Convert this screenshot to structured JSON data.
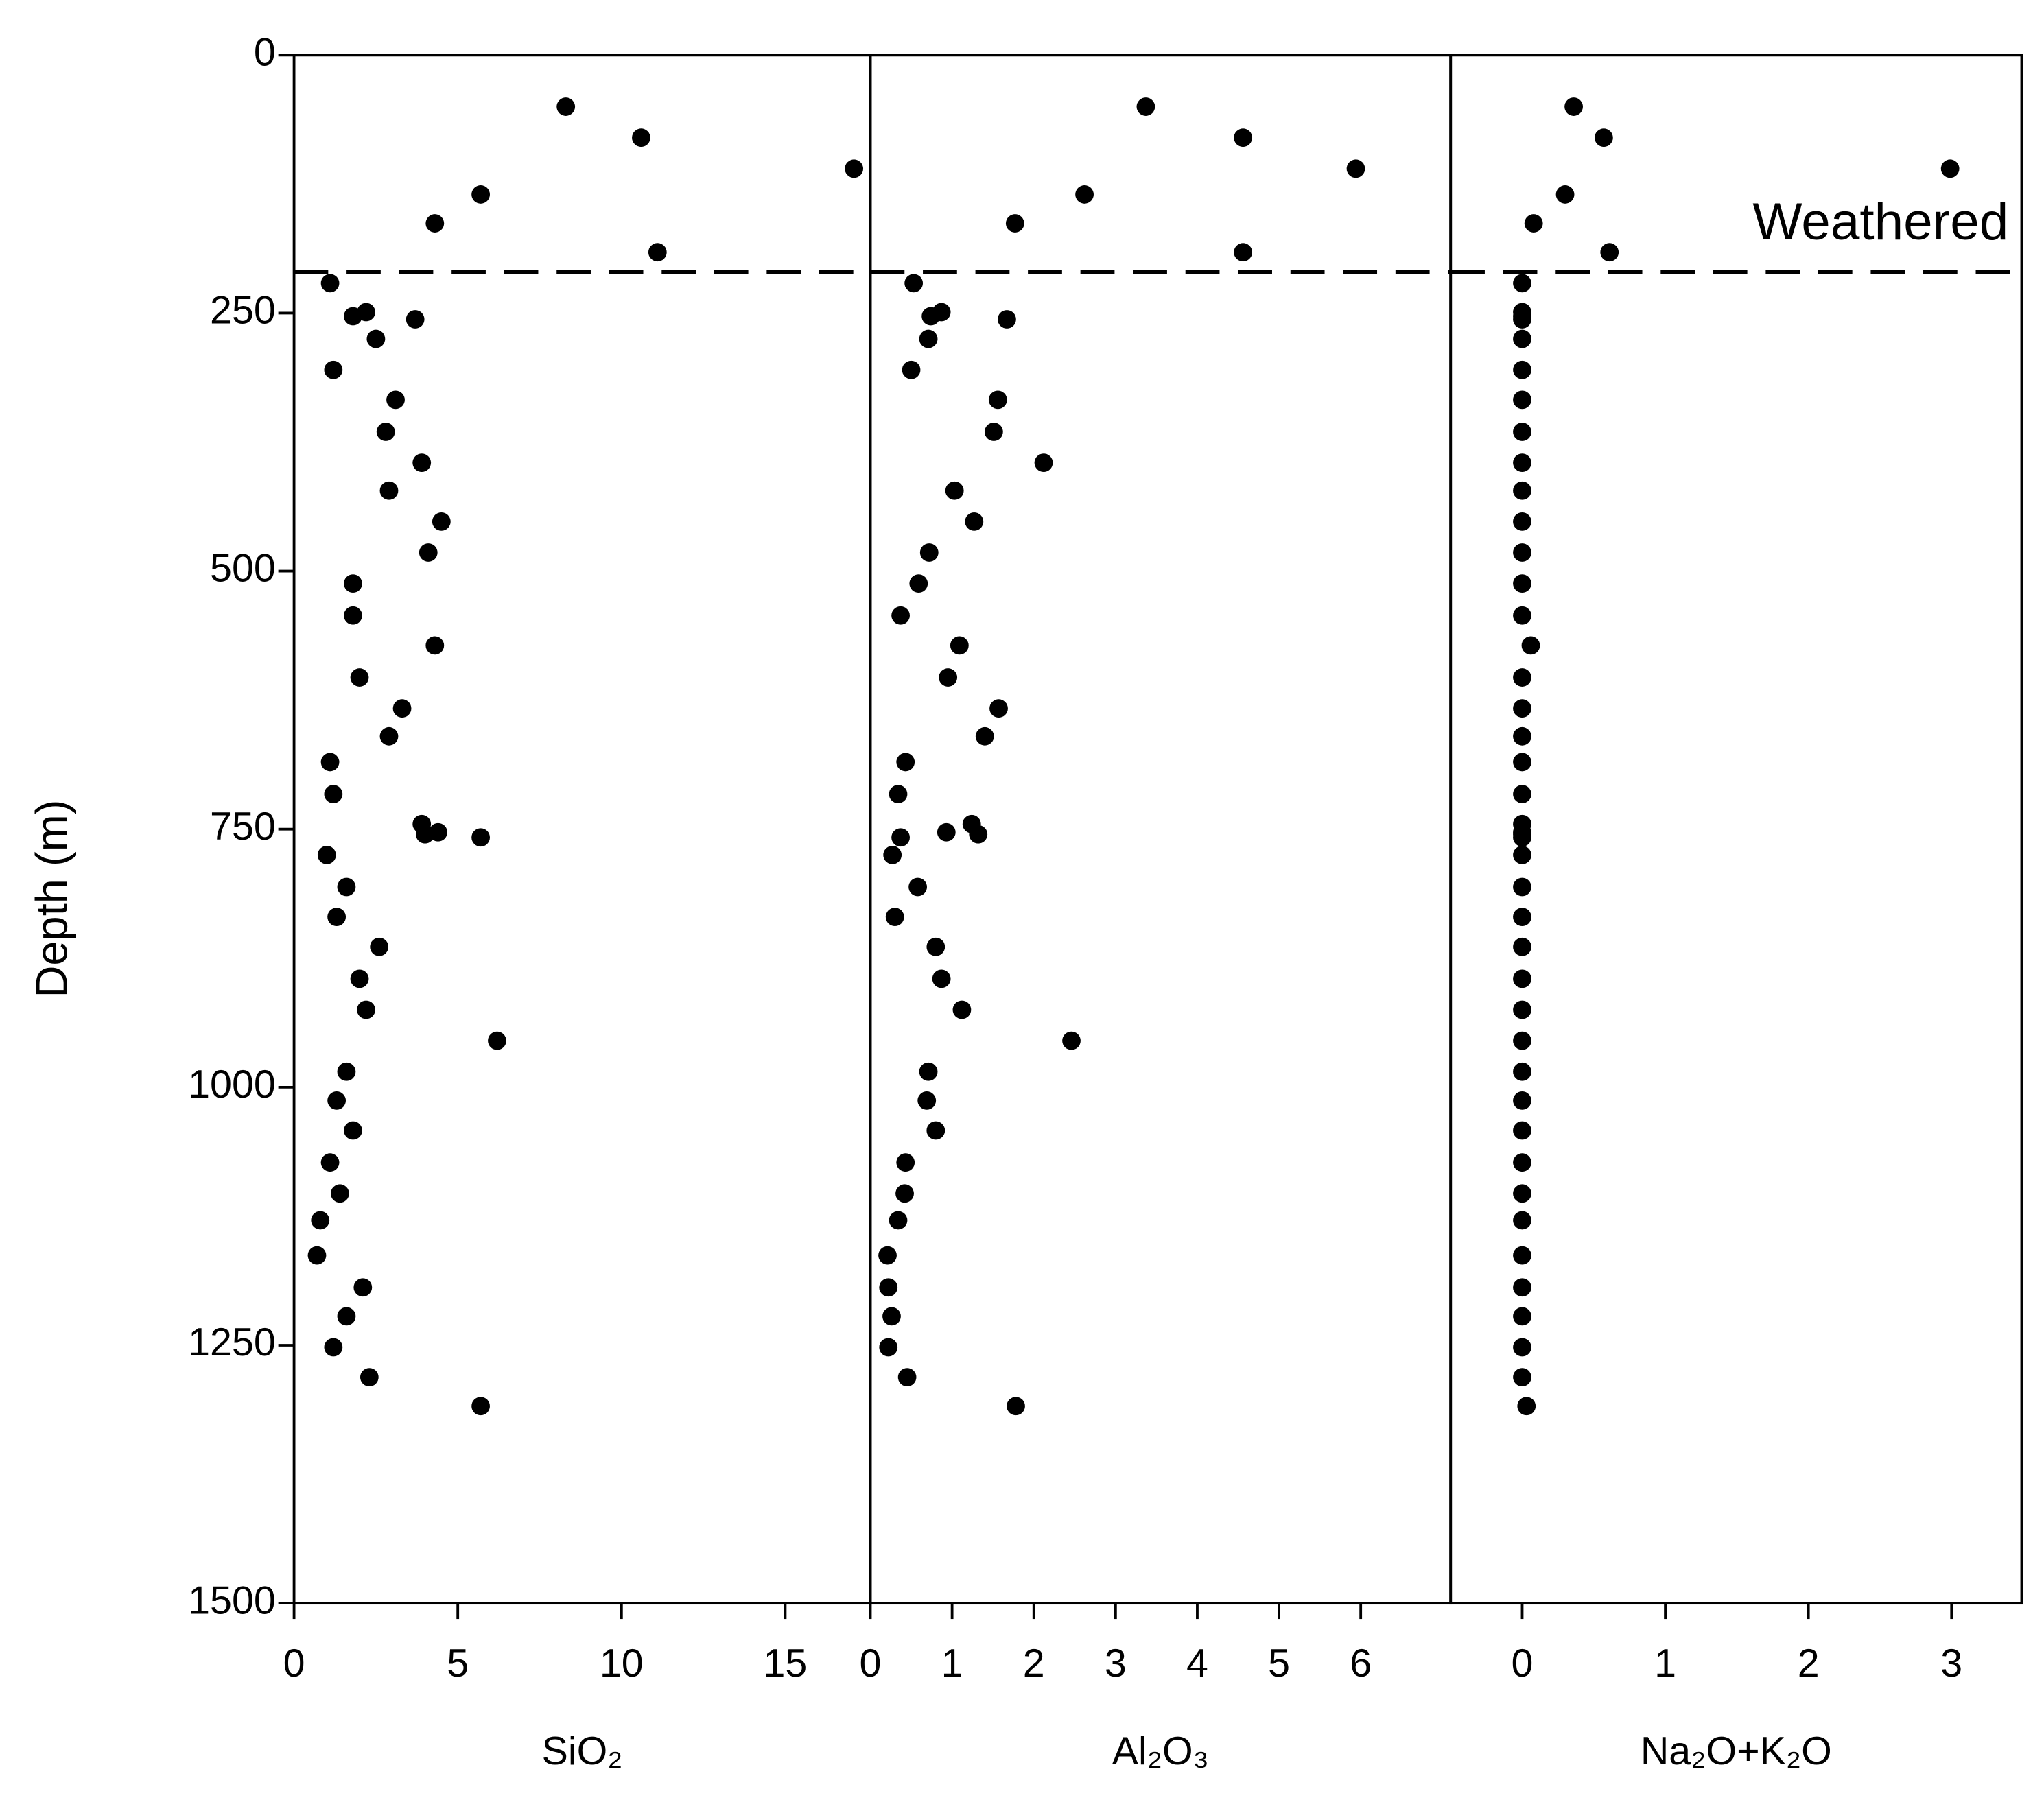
{
  "chart_data": [
    {
      "type": "scatter",
      "x_label": "SiO₂",
      "y_label": "Depth (m)",
      "color": "#000000",
      "y_inverted": true,
      "reference_line": 210,
      "xlim": [
        0,
        17.6
      ],
      "xticks": [
        0,
        5,
        10,
        15
      ],
      "ylim": [
        0,
        1500
      ],
      "yticks": [
        0,
        250,
        500,
        750,
        1000,
        1250,
        1500
      ],
      "y": [
        50,
        80,
        110,
        135,
        163,
        191,
        221,
        249,
        253,
        256,
        275,
        305,
        334,
        365,
        395,
        422,
        452,
        482,
        512,
        543,
        572,
        603,
        633,
        660,
        685,
        716,
        745,
        753,
        755,
        758,
        775,
        806,
        835,
        864,
        895,
        925,
        955,
        985,
        1013,
        1042,
        1073,
        1103,
        1129,
        1163,
        1194,
        1222,
        1252,
        1281,
        1309
      ],
      "x": [
        8.3,
        10.6,
        17.1,
        5.7,
        4.3,
        11.1,
        1.1,
        2.2,
        1.8,
        3.7,
        2.5,
        1.2,
        3.1,
        2.8,
        3.9,
        2.9,
        4.5,
        4.1,
        1.8,
        1.8,
        4.3,
        2.0,
        3.3,
        2.9,
        1.1,
        1.2,
        3.9,
        4.4,
        4.0,
        5.7,
        1.0,
        1.6,
        1.3,
        2.6,
        2.0,
        2.2,
        6.2,
        1.6,
        1.3,
        1.8,
        1.1,
        1.4,
        0.8,
        0.7,
        2.1,
        1.6,
        1.2,
        2.3,
        5.7
      ]
    },
    {
      "type": "scatter",
      "x_label": "Al₂O₃",
      "color": "#000000",
      "y_inverted": true,
      "reference_line": 210,
      "xlim": [
        0,
        7.1
      ],
      "xticks": [
        0,
        1,
        2,
        3,
        4,
        5,
        6
      ],
      "ylim": [
        0,
        1500
      ],
      "y": [
        50,
        80,
        110,
        135,
        163,
        191,
        221,
        249,
        253,
        256,
        275,
        305,
        334,
        365,
        395,
        422,
        452,
        482,
        512,
        543,
        572,
        603,
        633,
        660,
        685,
        716,
        745,
        753,
        755,
        758,
        775,
        806,
        835,
        864,
        895,
        925,
        955,
        985,
        1013,
        1042,
        1073,
        1103,
        1129,
        1163,
        1194,
        1222,
        1252,
        1281,
        1309
      ],
      "x": [
        3.37,
        4.56,
        5.94,
        2.62,
        1.77,
        4.56,
        0.53,
        0.87,
        0.74,
        1.67,
        0.71,
        0.5,
        1.56,
        1.51,
        2.12,
        1.03,
        1.27,
        0.72,
        0.59,
        0.37,
        1.09,
        0.95,
        1.57,
        1.4,
        0.43,
        0.34,
        1.24,
        0.93,
        1.32,
        0.37,
        0.27,
        0.58,
        0.3,
        0.8,
        0.87,
        1.12,
        2.46,
        0.71,
        0.69,
        0.8,
        0.43,
        0.42,
        0.34,
        0.21,
        0.22,
        0.26,
        0.22,
        0.45,
        1.78
      ]
    },
    {
      "type": "scatter",
      "x_label": "Na₂O+K₂O",
      "annotation": "Weathered",
      "color": "#000000",
      "y_inverted": true,
      "reference_line": 210,
      "xlim": [
        -0.5,
        3.49
      ],
      "xticks": [
        0,
        1,
        2,
        3
      ],
      "ylim": [
        0,
        1500
      ],
      "y": [
        50,
        80,
        110,
        135,
        163,
        191,
        221,
        249,
        253,
        256,
        275,
        305,
        334,
        365,
        395,
        422,
        452,
        482,
        512,
        543,
        572,
        603,
        633,
        660,
        685,
        716,
        745,
        753,
        755,
        758,
        775,
        806,
        835,
        864,
        895,
        925,
        955,
        985,
        1013,
        1042,
        1073,
        1103,
        1129,
        1163,
        1194,
        1222,
        1252,
        1281,
        1309
      ],
      "x": [
        0.36,
        0.57,
        2.99,
        0.3,
        0.08,
        0.61,
        0,
        0,
        0,
        0,
        0,
        0,
        0,
        0,
        0,
        0,
        0,
        0,
        0,
        0,
        0.06,
        0,
        0,
        0,
        0,
        0,
        0,
        0,
        0,
        0,
        0,
        0,
        0,
        0,
        0,
        0,
        0,
        0,
        0,
        0,
        0,
        0,
        0,
        0,
        0,
        0,
        0,
        0,
        0.03
      ]
    }
  ]
}
